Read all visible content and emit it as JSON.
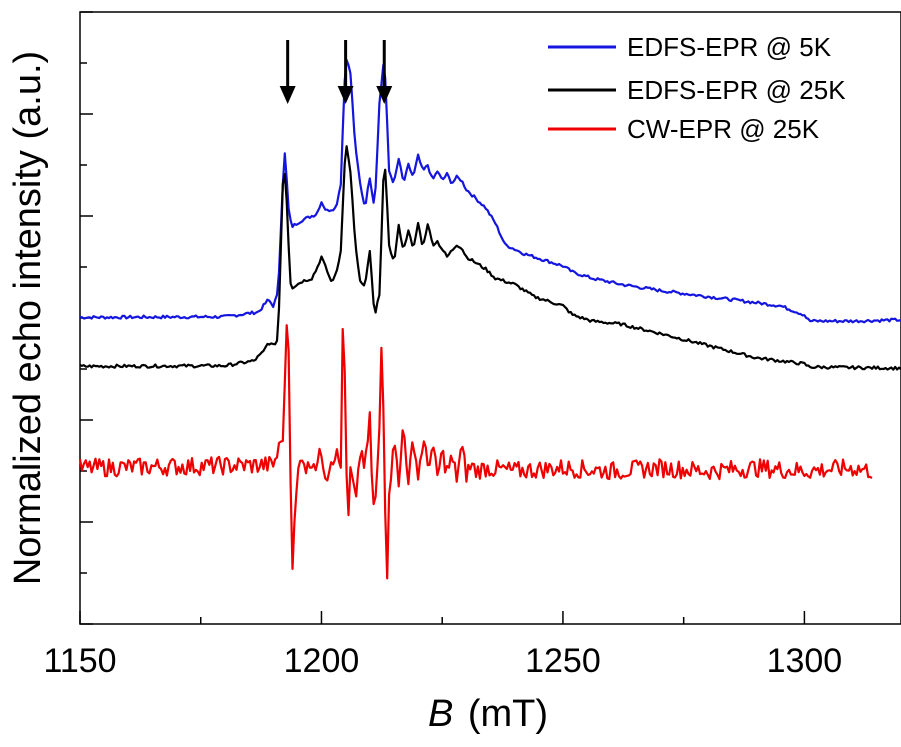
{
  "chart_data": {
    "type": "line",
    "xlabel_symbol": "B",
    "xlabel_unit": "(mT)",
    "ylabel": "Normalized echo intensity (a.u.)",
    "xlim": [
      1150,
      1320
    ],
    "ylim": [
      0,
      1
    ],
    "x_ticks": [
      "1150",
      "1200",
      "1250",
      "1300"
    ],
    "x_tick_values": [
      1150,
      1200,
      1250,
      1300
    ],
    "y_ticks_labeled": false,
    "grid": false,
    "legend_position": "top-right",
    "arrows_at_x": [
      1193,
      1205,
      1213
    ],
    "series": [
      {
        "name": "EDFS-EPR @ 5K",
        "color": "#1515e0",
        "baseline": 0.5,
        "x": [
          1150,
          1180,
          1187,
          1189,
          1190,
          1191,
          1192,
          1192.5,
          1193,
          1193.5,
          1194,
          1196,
          1199,
          1200,
          1201,
          1203,
          1204,
          1205,
          1206,
          1207,
          1208,
          1209,
          1210,
          1211,
          1212,
          1213,
          1214,
          1215,
          1216,
          1217,
          1218,
          1219,
          1220,
          1221,
          1222,
          1223,
          1224,
          1225,
          1226,
          1227,
          1228,
          1229,
          1230,
          1232,
          1234,
          1236,
          1238,
          1242,
          1246,
          1250,
          1252,
          1256,
          1262,
          1270,
          1280,
          1295,
          1300,
          1301,
          1310,
          1320
        ],
        "y": [
          0.501,
          0.502,
          0.51,
          0.53,
          0.52,
          0.54,
          0.72,
          0.78,
          0.69,
          0.66,
          0.65,
          0.66,
          0.67,
          0.69,
          0.675,
          0.68,
          0.72,
          0.93,
          0.9,
          0.78,
          0.72,
          0.68,
          0.73,
          0.68,
          0.85,
          0.93,
          0.74,
          0.72,
          0.76,
          0.72,
          0.75,
          0.73,
          0.765,
          0.74,
          0.75,
          0.725,
          0.74,
          0.725,
          0.735,
          0.72,
          0.73,
          0.725,
          0.71,
          0.695,
          0.68,
          0.655,
          0.62,
          0.605,
          0.595,
          0.585,
          0.575,
          0.565,
          0.555,
          0.545,
          0.535,
          0.52,
          0.505,
          0.495,
          0.495,
          0.497
        ]
      },
      {
        "name": "EDFS-EPR @ 25K",
        "color": "#000000",
        "baseline": 0.42,
        "x": [
          1150,
          1180,
          1186,
          1188,
          1189,
          1190,
          1191,
          1192,
          1192.5,
          1193,
          1193.5,
          1194,
          1196,
          1198,
          1199,
          1200,
          1201,
          1202,
          1203,
          1204,
          1205,
          1206,
          1207,
          1208,
          1209,
          1210,
          1211,
          1212,
          1213,
          1214,
          1215,
          1216,
          1217,
          1218,
          1219,
          1220,
          1221,
          1222,
          1223,
          1224,
          1226,
          1228,
          1229,
          1230,
          1232,
          1234,
          1236,
          1240,
          1244,
          1250,
          1252,
          1256,
          1262,
          1270,
          1280,
          1285,
          1290,
          1300,
          1301,
          1310,
          1320
        ],
        "y": [
          0.421,
          0.422,
          0.43,
          0.445,
          0.46,
          0.455,
          0.465,
          0.72,
          0.74,
          0.66,
          0.56,
          0.55,
          0.56,
          0.565,
          0.58,
          0.6,
          0.58,
          0.56,
          0.57,
          0.61,
          0.79,
          0.74,
          0.62,
          0.56,
          0.55,
          0.61,
          0.5,
          0.54,
          0.77,
          0.62,
          0.59,
          0.65,
          0.61,
          0.645,
          0.61,
          0.655,
          0.615,
          0.655,
          0.62,
          0.625,
          0.6,
          0.62,
          0.615,
          0.6,
          0.59,
          0.58,
          0.565,
          0.555,
          0.535,
          0.52,
          0.505,
          0.495,
          0.49,
          0.475,
          0.455,
          0.445,
          0.435,
          0.425,
          0.42,
          0.419,
          0.418
        ]
      },
      {
        "name": "CW-EPR @ 25K",
        "color": "#ee0000",
        "baseline": 0.25,
        "x": [
          1150,
          1190,
          1191,
          1192,
          1192.5,
          1193,
          1193.5,
          1194,
          1195,
          1196,
          1197,
          1198,
          1199,
          1200,
          1201,
          1202,
          1203,
          1204,
          1204.5,
          1205,
          1205.5,
          1206,
          1207,
          1208,
          1209,
          1210,
          1210.5,
          1211,
          1212,
          1212.5,
          1213,
          1213.5,
          1214,
          1215,
          1216,
          1217,
          1218,
          1219,
          1220,
          1221,
          1222,
          1223,
          1224,
          1225,
          1226,
          1227,
          1228,
          1229,
          1230,
          1231,
          1232,
          1234,
          1240,
          1250,
          1260,
          1270,
          1280,
          1290,
          1300,
          1310,
          1314
        ],
        "y": [
          0.255,
          0.26,
          0.28,
          0.31,
          0.4,
          0.56,
          0.28,
          0.1,
          0.24,
          0.28,
          0.25,
          0.27,
          0.26,
          0.28,
          0.24,
          0.27,
          0.28,
          0.255,
          0.55,
          0.3,
          0.15,
          0.25,
          0.2,
          0.28,
          0.25,
          0.34,
          0.22,
          0.17,
          0.32,
          0.5,
          0.28,
          0.06,
          0.2,
          0.32,
          0.22,
          0.34,
          0.22,
          0.31,
          0.24,
          0.3,
          0.26,
          0.29,
          0.24,
          0.28,
          0.25,
          0.27,
          0.24,
          0.29,
          0.245,
          0.26,
          0.25,
          0.255,
          0.25,
          0.255,
          0.25,
          0.255,
          0.25,
          0.255,
          0.25,
          0.255,
          0.25
        ]
      }
    ]
  }
}
